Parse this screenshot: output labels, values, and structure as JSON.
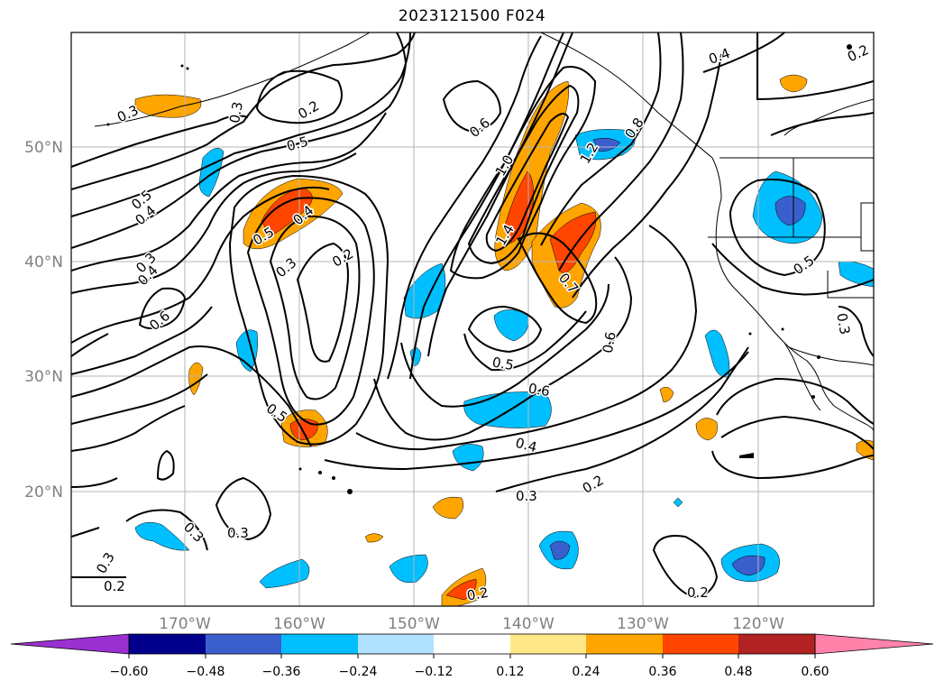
{
  "title": "2023121500 F024",
  "lat_labels": [
    "50°N",
    "40°N",
    "30°N",
    "20°N"
  ],
  "lon_labels": [
    "170°W",
    "160°W",
    "150°W",
    "140°W",
    "130°W",
    "120°W"
  ],
  "contour_labels": [
    "0.3",
    "0.3",
    "0.2",
    "0.5",
    "0.5",
    "0.4",
    "0.4",
    "0.3",
    "0.4",
    "0.6",
    "0.3",
    "0.2",
    "0.5",
    "0.2",
    "0.6",
    "1.0",
    "1.2",
    "0.8",
    "1.4",
    "0.7",
    "0.6",
    "0.5",
    "0.6",
    "0.4",
    "0.3",
    "0.2",
    "0.2",
    "0.3",
    "0.3",
    "0.2",
    "0.3",
    "0.4",
    "0.5",
    "0.5",
    "0.3"
  ],
  "colorbar": {
    "tick_labels": [
      "−0.60",
      "−0.48",
      "−0.36",
      "−0.24",
      "−0.12",
      "0.12",
      "0.24",
      "0.36",
      "0.48",
      "0.60"
    ],
    "colors": [
      "#9b30d0",
      "#00008b",
      "#3a5fcd",
      "#00bfff",
      "#b0e2ff",
      "#ffffff",
      "#ffe88a",
      "#ffa500",
      "#ff4500",
      "#b22222",
      "#ff82ab"
    ]
  }
}
